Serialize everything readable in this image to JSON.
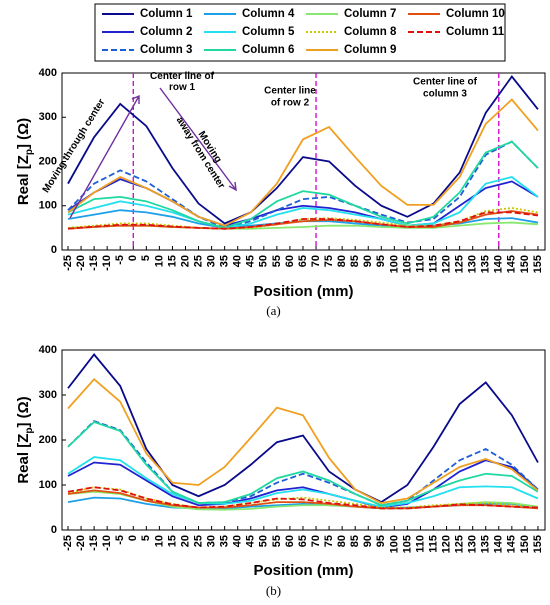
{
  "chart_data": [
    {
      "type": "line",
      "x": [
        -25,
        -15,
        -5,
        5,
        15,
        25,
        35,
        45,
        55,
        65,
        75,
        85,
        95,
        105,
        115,
        125,
        135,
        145,
        155
      ],
      "series": [
        {
          "name": "Column 1",
          "color": "#0a0a8c",
          "style": "solid",
          "values": [
            150,
            255,
            330,
            280,
            185,
            105,
            60,
            85,
            140,
            210,
            200,
            145,
            100,
            75,
            105,
            175,
            310,
            392,
            318
          ]
        },
        {
          "name": "Column 2",
          "color": "#2222d0",
          "style": "solid",
          "values": [
            90,
            130,
            160,
            140,
            110,
            75,
            55,
            70,
            90,
            100,
            95,
            85,
            70,
            55,
            60,
            100,
            140,
            155,
            120
          ]
        },
        {
          "name": "Column 3",
          "color": "#1f5fd6",
          "style": "dashed",
          "values": [
            90,
            150,
            180,
            155,
            115,
            75,
            50,
            65,
            90,
            115,
            120,
            100,
            80,
            62,
            70,
            120,
            215,
            245,
            185
          ]
        },
        {
          "name": "Column 4",
          "color": "#1ea0e8",
          "style": "solid",
          "values": [
            70,
            80,
            90,
            85,
            75,
            60,
            50,
            55,
            60,
            65,
            65,
            60,
            55,
            50,
            55,
            60,
            70,
            72,
            62
          ]
        },
        {
          "name": "Column 5",
          "color": "#22e0ee",
          "style": "solid",
          "values": [
            80,
            95,
            110,
            100,
            85,
            65,
            50,
            60,
            80,
            95,
            90,
            80,
            70,
            55,
            60,
            85,
            150,
            165,
            120
          ]
        },
        {
          "name": "Column 6",
          "color": "#20d8a0",
          "style": "solid",
          "values": [
            85,
            115,
            120,
            110,
            90,
            65,
            50,
            70,
            110,
            133,
            125,
            100,
            75,
            60,
            75,
            130,
            220,
            245,
            185
          ]
        },
        {
          "name": "Column 7",
          "color": "#88e870",
          "style": "solid",
          "values": [
            50,
            52,
            55,
            55,
            52,
            50,
            48,
            48,
            50,
            52,
            55,
            55,
            52,
            50,
            50,
            55,
            60,
            62,
            58
          ]
        },
        {
          "name": "Column 8",
          "color": "#c8c800",
          "style": "dotted",
          "values": [
            50,
            55,
            60,
            60,
            55,
            50,
            48,
            50,
            58,
            70,
            72,
            68,
            62,
            55,
            55,
            65,
            88,
            95,
            85
          ]
        },
        {
          "name": "Column 9",
          "color": "#f0a020",
          "style": "solid",
          "values": [
            85,
            130,
            165,
            140,
            110,
            75,
            55,
            85,
            150,
            250,
            278,
            210,
            145,
            102,
            102,
            165,
            285,
            340,
            270
          ]
        },
        {
          "name": "Column 10",
          "color": "#e05010",
          "style": "solid",
          "values": [
            48,
            52,
            55,
            55,
            52,
            50,
            48,
            52,
            58,
            65,
            68,
            65,
            58,
            52,
            52,
            62,
            80,
            88,
            80
          ]
        },
        {
          "name": "Column 11",
          "color": "#e01010",
          "style": "dashed",
          "values": [
            48,
            53,
            57,
            57,
            53,
            50,
            48,
            52,
            60,
            70,
            70,
            65,
            58,
            52,
            55,
            65,
            85,
            85,
            78
          ]
        }
      ],
      "xlim": [
        -27.3,
        157.7
      ],
      "ylim": [
        0,
        400
      ],
      "xticks": [
        -25,
        -20,
        -15,
        -10,
        -5,
        0,
        5,
        10,
        15,
        20,
        25,
        30,
        35,
        40,
        45,
        50,
        55,
        60,
        65,
        70,
        75,
        80,
        85,
        90,
        95,
        100,
        105,
        110,
        115,
        120,
        125,
        130,
        135,
        140,
        145,
        150,
        155
      ],
      "yticks": [
        0,
        100,
        200,
        300,
        400
      ],
      "x_label": "Position (mm)",
      "y_label": [
        "Real [Z",
        "p",
        "] (Ω)"
      ],
      "panel_label": "(a)",
      "reference_lines": {
        "x": [
          0,
          70,
          140
        ],
        "color": "#cc00cc"
      },
      "annotations": [
        {
          "lines": [
            "Moving through center"
          ],
          "color": "#7030a0"
        },
        {
          "lines": [
            "Center line of",
            "row 1"
          ],
          "color": "#000000"
        },
        {
          "lines": [
            "Moving",
            "away from center"
          ],
          "color": "#7030a0"
        },
        {
          "lines": [
            "Center line",
            "of row 2"
          ],
          "color": "#000000"
        },
        {
          "lines": [
            "Center line of",
            "column 3"
          ],
          "color": "#000000"
        }
      ]
    },
    {
      "type": "line",
      "x": [
        -25,
        -15,
        -5,
        5,
        15,
        25,
        35,
        45,
        55,
        65,
        75,
        85,
        95,
        105,
        115,
        125,
        135,
        145,
        155
      ],
      "series": [
        {
          "color": "#0a0a8c",
          "style": "solid",
          "values": [
            315,
            390,
            320,
            180,
            100,
            75,
            100,
            145,
            195,
            210,
            130,
            90,
            62,
            100,
            185,
            280,
            328,
            255,
            150
          ]
        },
        {
          "color": "#2222d0",
          "style": "solid",
          "values": [
            120,
            150,
            145,
            110,
            75,
            55,
            58,
            70,
            88,
            95,
            80,
            65,
            50,
            58,
            90,
            130,
            155,
            140,
            90
          ]
        },
        {
          "color": "#1f5fd6",
          "style": "dashed",
          "values": [
            185,
            242,
            222,
            150,
            85,
            60,
            62,
            75,
            105,
            125,
            105,
            80,
            55,
            65,
            110,
            155,
            180,
            145,
            90
          ]
        },
        {
          "color": "#1ea0e8",
          "style": "solid",
          "values": [
            62,
            72,
            70,
            58,
            50,
            48,
            48,
            52,
            55,
            58,
            55,
            52,
            48,
            50,
            52,
            55,
            58,
            58,
            50
          ]
        },
        {
          "color": "#22e0ee",
          "style": "solid",
          "values": [
            125,
            162,
            155,
            115,
            80,
            60,
            58,
            65,
            82,
            90,
            80,
            65,
            52,
            60,
            75,
            95,
            97,
            95,
            70
          ]
        },
        {
          "color": "#20d8a0",
          "style": "solid",
          "values": [
            185,
            240,
            220,
            145,
            85,
            60,
            62,
            80,
            115,
            130,
            110,
            80,
            55,
            65,
            90,
            110,
            125,
            120,
            85
          ]
        },
        {
          "color": "#88e870",
          "style": "solid",
          "values": [
            80,
            85,
            80,
            65,
            52,
            46,
            45,
            47,
            52,
            55,
            55,
            52,
            48,
            48,
            52,
            58,
            62,
            60,
            52
          ]
        },
        {
          "color": "#c8c800",
          "style": "dotted",
          "values": [
            82,
            95,
            90,
            70,
            58,
            50,
            52,
            60,
            68,
            72,
            65,
            58,
            50,
            50,
            55,
            58,
            60,
            55,
            50
          ]
        },
        {
          "color": "#f0a020",
          "style": "solid",
          "values": [
            270,
            335,
            285,
            170,
            105,
            100,
            140,
            205,
            272,
            255,
            160,
            90,
            60,
            70,
            105,
            140,
            158,
            135,
            88
          ]
        },
        {
          "color": "#e05010",
          "style": "solid",
          "values": [
            80,
            88,
            82,
            65,
            55,
            50,
            50,
            55,
            62,
            62,
            58,
            52,
            48,
            48,
            52,
            55,
            55,
            52,
            48
          ]
        },
        {
          "color": "#e01010",
          "style": "dashed",
          "values": [
            85,
            95,
            88,
            70,
            57,
            50,
            52,
            60,
            70,
            68,
            60,
            55,
            48,
            48,
            52,
            57,
            55,
            52,
            50
          ]
        }
      ],
      "xlim": [
        -27.3,
        157.7
      ],
      "ylim": [
        0,
        400
      ],
      "xticks": [
        -25,
        -20,
        -15,
        -10,
        -5,
        0,
        5,
        10,
        15,
        20,
        25,
        30,
        35,
        40,
        45,
        50,
        55,
        60,
        65,
        70,
        75,
        80,
        85,
        90,
        95,
        100,
        105,
        110,
        115,
        120,
        125,
        130,
        135,
        140,
        145,
        150,
        155
      ],
      "yticks": [
        0,
        100,
        200,
        300,
        400
      ],
      "x_label": "Position (mm)",
      "y_label": [
        "Real [Z",
        "p",
        "] (Ω)"
      ],
      "panel_label": "(b)"
    }
  ]
}
